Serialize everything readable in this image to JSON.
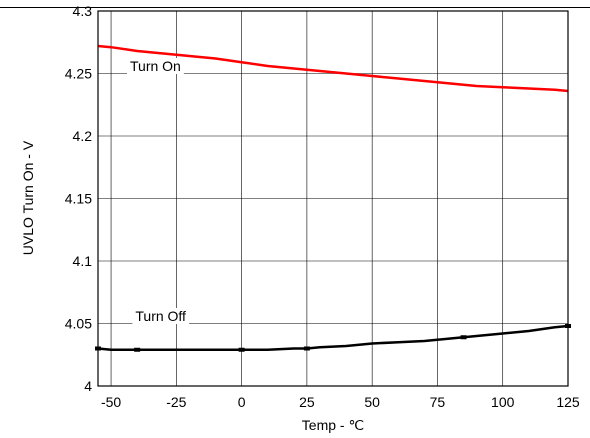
{
  "chart_data": {
    "type": "line",
    "title": "",
    "xlabel": "Temp - ℃",
    "ylabel": "UVLO Turn On - V",
    "xlim": [
      -55,
      125
    ],
    "ylim": [
      4.0,
      4.3
    ],
    "x_ticks": [
      -50,
      -25,
      0,
      25,
      50,
      75,
      100,
      125
    ],
    "y_ticks": [
      4,
      4.05,
      4.1,
      4.15,
      4.2,
      4.25,
      4.3
    ],
    "x_tick_labels": [
      "-50",
      "-25",
      "0",
      "25",
      "50",
      "75",
      "100",
      "125"
    ],
    "y_tick_labels": [
      "4",
      "4.05",
      "4.1",
      "4.15",
      "4.2",
      "4.25",
      "4.3"
    ],
    "grid": true,
    "series": [
      {
        "name": "Turn On",
        "color": "#ff0000",
        "x": [
          -55,
          -50,
          -40,
          -30,
          -20,
          -10,
          0,
          10,
          20,
          30,
          40,
          50,
          60,
          70,
          80,
          90,
          100,
          110,
          120,
          125
        ],
        "y": [
          4.272,
          4.271,
          4.268,
          4.266,
          4.264,
          4.262,
          4.259,
          4.256,
          4.254,
          4.252,
          4.25,
          4.248,
          4.246,
          4.244,
          4.242,
          4.24,
          4.239,
          4.238,
          4.237,
          4.236
        ]
      },
      {
        "name": "Turn Off",
        "color": "#000000",
        "x": [
          -55,
          -50,
          -40,
          -30,
          -20,
          -10,
          0,
          10,
          20,
          25,
          30,
          40,
          50,
          60,
          70,
          80,
          90,
          100,
          110,
          120,
          125
        ],
        "y": [
          4.03,
          4.029,
          4.029,
          4.029,
          4.029,
          4.029,
          4.029,
          4.029,
          4.03,
          4.03,
          4.031,
          4.032,
          4.034,
          4.035,
          4.036,
          4.038,
          4.04,
          4.042,
          4.044,
          4.047,
          4.048
        ],
        "markers_x": [
          -55,
          -40,
          0,
          25,
          85,
          125
        ],
        "markers_y": [
          4.03,
          4.029,
          4.029,
          4.03,
          4.039,
          4.048
        ]
      }
    ],
    "annotations": [
      {
        "text": "Turn On",
        "series": 0,
        "at_x": -33,
        "at_y": 4.252
      },
      {
        "text": "Turn Off",
        "series": 1,
        "at_x": -31,
        "at_y": 4.052
      }
    ]
  }
}
